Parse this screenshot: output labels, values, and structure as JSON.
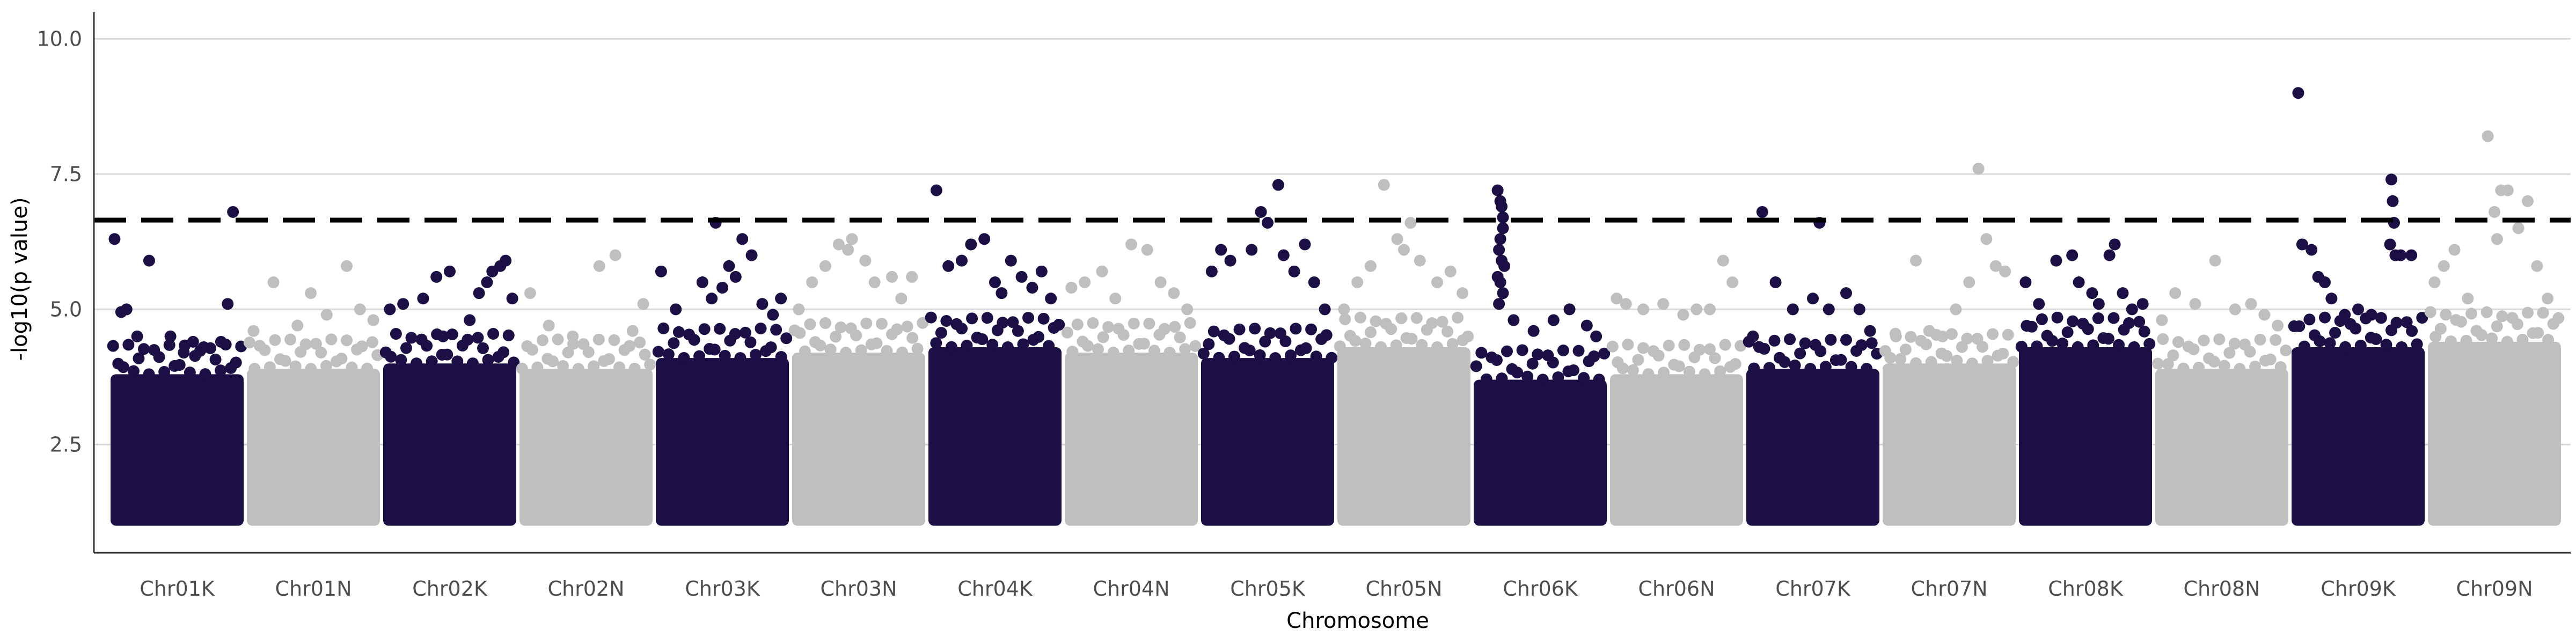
{
  "chart_data": {
    "type": "scatter",
    "subtype": "manhattan",
    "title": "",
    "xlabel": "Chromosome",
    "ylabel": "-log10(p value)",
    "ylim": [
      0.5,
      10.5
    ],
    "yticks": [
      2.5,
      5.0,
      7.5,
      10.0
    ],
    "ytick_labels": [
      "2.5",
      "5.0",
      "7.5",
      "10.0"
    ],
    "grid": "horizontal major lines",
    "threshold": {
      "value": 6.65,
      "style": "dashed",
      "color": "#000000"
    },
    "colors": {
      "odd": "#1c0f45",
      "even": "#bfbfbf",
      "grid": "#d9d9d9",
      "axis": "#333333"
    },
    "categories": [
      "Chr01K",
      "Chr01N",
      "Chr02K",
      "Chr02N",
      "Chr03K",
      "Chr03N",
      "Chr04K",
      "Chr04N",
      "Chr05K",
      "Chr05N",
      "Chr06K",
      "Chr06N",
      "Chr07K",
      "Chr07N",
      "Chr08K",
      "Chr08N",
      "Chr09K",
      "Chr09N"
    ],
    "series": [
      {
        "chromosome": "Chr01K",
        "band_top": 3.8,
        "points": [
          [
            0.03,
            6.3
          ],
          [
            0.29,
            5.9
          ],
          [
            0.12,
            5.0
          ],
          [
            0.08,
            4.95
          ],
          [
            0.2,
            4.5
          ],
          [
            0.45,
            4.5
          ],
          [
            0.62,
            4.4
          ],
          [
            0.55,
            4.2
          ],
          [
            0.88,
            5.1
          ],
          [
            0.92,
            6.8
          ],
          [
            0.83,
            4.4
          ],
          [
            0.7,
            4.3
          ]
        ]
      },
      {
        "chromosome": "Chr01N",
        "band_top": 3.9,
        "points": [
          [
            0.05,
            4.6
          ],
          [
            0.2,
            5.5
          ],
          [
            0.38,
            4.7
          ],
          [
            0.48,
            5.3
          ],
          [
            0.6,
            4.9
          ],
          [
            0.75,
            5.8
          ],
          [
            0.85,
            5.0
          ],
          [
            0.95,
            4.8
          ]
        ]
      },
      {
        "chromosome": "Chr02K",
        "band_top": 4.0,
        "points": [
          [
            0.05,
            5.0
          ],
          [
            0.15,
            5.1
          ],
          [
            0.3,
            5.2
          ],
          [
            0.4,
            5.6
          ],
          [
            0.45,
            4.5
          ],
          [
            0.5,
            5.7
          ],
          [
            0.65,
            4.8
          ],
          [
            0.72,
            5.3
          ],
          [
            0.78,
            5.5
          ],
          [
            0.82,
            5.7
          ],
          [
            0.88,
            5.8
          ],
          [
            0.92,
            5.9
          ],
          [
            0.97,
            5.2
          ]
        ]
      },
      {
        "chromosome": "Chr02N",
        "band_top": 3.9,
        "points": [
          [
            0.08,
            5.3
          ],
          [
            0.22,
            4.7
          ],
          [
            0.4,
            4.5
          ],
          [
            0.6,
            5.8
          ],
          [
            0.72,
            6.0
          ],
          [
            0.85,
            4.6
          ],
          [
            0.93,
            5.1
          ]
        ]
      },
      {
        "chromosome": "Chr03K",
        "band_top": 4.1,
        "points": [
          [
            0.04,
            5.7
          ],
          [
            0.15,
            5.0
          ],
          [
            0.35,
            5.5
          ],
          [
            0.42,
            5.2
          ],
          [
            0.45,
            6.6
          ],
          [
            0.55,
            5.8
          ],
          [
            0.65,
            6.3
          ],
          [
            0.72,
            6.0
          ],
          [
            0.8,
            5.1
          ],
          [
            0.88,
            4.9
          ],
          [
            0.94,
            5.2
          ],
          [
            0.5,
            5.4
          ],
          [
            0.6,
            5.6
          ]
        ]
      },
      {
        "chromosome": "Chr03N",
        "band_top": 4.2,
        "points": [
          [
            0.05,
            5.0
          ],
          [
            0.15,
            5.5
          ],
          [
            0.25,
            5.8
          ],
          [
            0.35,
            6.2
          ],
          [
            0.42,
            6.1
          ],
          [
            0.45,
            6.3
          ],
          [
            0.55,
            5.9
          ],
          [
            0.62,
            5.5
          ],
          [
            0.75,
            5.6
          ],
          [
            0.82,
            5.2
          ],
          [
            0.9,
            5.6
          ]
        ]
      },
      {
        "chromosome": "Chr04K",
        "band_top": 4.3,
        "points": [
          [
            0.06,
            7.2
          ],
          [
            0.15,
            5.8
          ],
          [
            0.25,
            5.9
          ],
          [
            0.32,
            6.2
          ],
          [
            0.42,
            6.3
          ],
          [
            0.5,
            5.5
          ],
          [
            0.55,
            5.3
          ],
          [
            0.62,
            5.9
          ],
          [
            0.7,
            5.6
          ],
          [
            0.78,
            5.4
          ],
          [
            0.85,
            5.7
          ],
          [
            0.92,
            5.2
          ]
        ]
      },
      {
        "chromosome": "Chr04N",
        "band_top": 4.2,
        "points": [
          [
            0.05,
            5.4
          ],
          [
            0.15,
            5.5
          ],
          [
            0.28,
            5.7
          ],
          [
            0.38,
            5.2
          ],
          [
            0.5,
            6.2
          ],
          [
            0.62,
            6.1
          ],
          [
            0.72,
            5.5
          ],
          [
            0.82,
            5.3
          ],
          [
            0.92,
            5.0
          ]
        ]
      },
      {
        "chromosome": "Chr05K",
        "band_top": 4.1,
        "points": [
          [
            0.08,
            5.7
          ],
          [
            0.15,
            6.1
          ],
          [
            0.22,
            5.9
          ],
          [
            0.38,
            6.1
          ],
          [
            0.45,
            6.8
          ],
          [
            0.5,
            6.6
          ],
          [
            0.58,
            7.3
          ],
          [
            0.62,
            6.0
          ],
          [
            0.7,
            5.7
          ],
          [
            0.78,
            6.2
          ],
          [
            0.85,
            5.5
          ],
          [
            0.93,
            5.0
          ]
        ]
      },
      {
        "chromosome": "Chr05N",
        "band_top": 4.3,
        "points": [
          [
            0.05,
            5.0
          ],
          [
            0.15,
            5.5
          ],
          [
            0.25,
            5.8
          ],
          [
            0.35,
            7.3
          ],
          [
            0.45,
            6.3
          ],
          [
            0.5,
            6.1
          ],
          [
            0.55,
            6.6
          ],
          [
            0.62,
            5.9
          ],
          [
            0.75,
            5.5
          ],
          [
            0.85,
            5.7
          ],
          [
            0.94,
            5.3
          ]
        ]
      },
      {
        "chromosome": "Chr06K",
        "band_top": 3.7,
        "points": [
          [
            0.18,
            7.2
          ],
          [
            0.2,
            7.0
          ],
          [
            0.21,
            6.9
          ],
          [
            0.22,
            6.7
          ],
          [
            0.22,
            6.5
          ],
          [
            0.2,
            6.3
          ],
          [
            0.19,
            6.1
          ],
          [
            0.21,
            5.9
          ],
          [
            0.23,
            5.8
          ],
          [
            0.18,
            5.6
          ],
          [
            0.2,
            5.5
          ],
          [
            0.22,
            5.3
          ],
          [
            0.19,
            5.1
          ],
          [
            0.3,
            4.8
          ],
          [
            0.45,
            4.6
          ],
          [
            0.6,
            4.8
          ],
          [
            0.72,
            5.0
          ],
          [
            0.85,
            4.7
          ],
          [
            0.92,
            4.5
          ]
        ]
      },
      {
        "chromosome": "Chr06N",
        "band_top": 3.8,
        "points": [
          [
            0.05,
            5.2
          ],
          [
            0.12,
            5.1
          ],
          [
            0.25,
            5.0
          ],
          [
            0.4,
            5.1
          ],
          [
            0.55,
            4.9
          ],
          [
            0.65,
            5.0
          ],
          [
            0.75,
            5.0
          ],
          [
            0.85,
            5.9
          ],
          [
            0.92,
            5.5
          ]
        ]
      },
      {
        "chromosome": "Chr07K",
        "band_top": 3.9,
        "points": [
          [
            0.05,
            4.5
          ],
          [
            0.12,
            6.8
          ],
          [
            0.22,
            5.5
          ],
          [
            0.35,
            5.0
          ],
          [
            0.5,
            5.2
          ],
          [
            0.55,
            6.6
          ],
          [
            0.62,
            5.0
          ],
          [
            0.75,
            5.3
          ],
          [
            0.85,
            5.0
          ],
          [
            0.93,
            4.6
          ]
        ]
      },
      {
        "chromosome": "Chr07N",
        "band_top": 4.0,
        "points": [
          [
            0.1,
            4.5
          ],
          [
            0.25,
            5.9
          ],
          [
            0.35,
            4.6
          ],
          [
            0.45,
            4.5
          ],
          [
            0.55,
            5.0
          ],
          [
            0.65,
            5.5
          ],
          [
            0.72,
            7.6
          ],
          [
            0.78,
            6.3
          ],
          [
            0.85,
            5.8
          ],
          [
            0.92,
            5.7
          ]
        ]
      },
      {
        "chromosome": "Chr08K",
        "band_top": 4.3,
        "points": [
          [
            0.05,
            5.5
          ],
          [
            0.15,
            5.1
          ],
          [
            0.28,
            5.9
          ],
          [
            0.4,
            6.0
          ],
          [
            0.45,
            5.5
          ],
          [
            0.55,
            5.3
          ],
          [
            0.6,
            5.1
          ],
          [
            0.68,
            6.0
          ],
          [
            0.72,
            6.2
          ],
          [
            0.78,
            5.3
          ],
          [
            0.85,
            5.0
          ],
          [
            0.93,
            5.1
          ]
        ]
      },
      {
        "chromosome": "Chr08N",
        "band_top": 3.9,
        "points": [
          [
            0.05,
            4.8
          ],
          [
            0.15,
            5.3
          ],
          [
            0.3,
            5.1
          ],
          [
            0.45,
            5.9
          ],
          [
            0.6,
            5.0
          ],
          [
            0.72,
            5.1
          ],
          [
            0.82,
            4.9
          ],
          [
            0.92,
            4.7
          ]
        ]
      },
      {
        "chromosome": "Chr09K",
        "band_top": 4.3,
        "points": [
          [
            0.05,
            9.0
          ],
          [
            0.08,
            6.2
          ],
          [
            0.15,
            6.1
          ],
          [
            0.2,
            5.6
          ],
          [
            0.25,
            5.5
          ],
          [
            0.3,
            5.2
          ],
          [
            0.4,
            4.9
          ],
          [
            0.5,
            5.0
          ],
          [
            0.6,
            4.9
          ],
          [
            0.75,
            7.4
          ],
          [
            0.76,
            7.0
          ],
          [
            0.77,
            6.6
          ],
          [
            0.74,
            6.2
          ],
          [
            0.78,
            6.0
          ],
          [
            0.82,
            6.0
          ],
          [
            0.9,
            6.0
          ]
        ]
      },
      {
        "chromosome": "Chr09N",
        "band_top": 4.4,
        "points": [
          [
            0.05,
            5.5
          ],
          [
            0.12,
            5.8
          ],
          [
            0.2,
            6.1
          ],
          [
            0.3,
            5.2
          ],
          [
            0.45,
            8.2
          ],
          [
            0.5,
            6.8
          ],
          [
            0.52,
            6.3
          ],
          [
            0.55,
            7.2
          ],
          [
            0.6,
            7.2
          ],
          [
            0.68,
            6.5
          ],
          [
            0.75,
            7.0
          ],
          [
            0.82,
            5.8
          ],
          [
            0.9,
            5.2
          ]
        ]
      }
    ]
  }
}
